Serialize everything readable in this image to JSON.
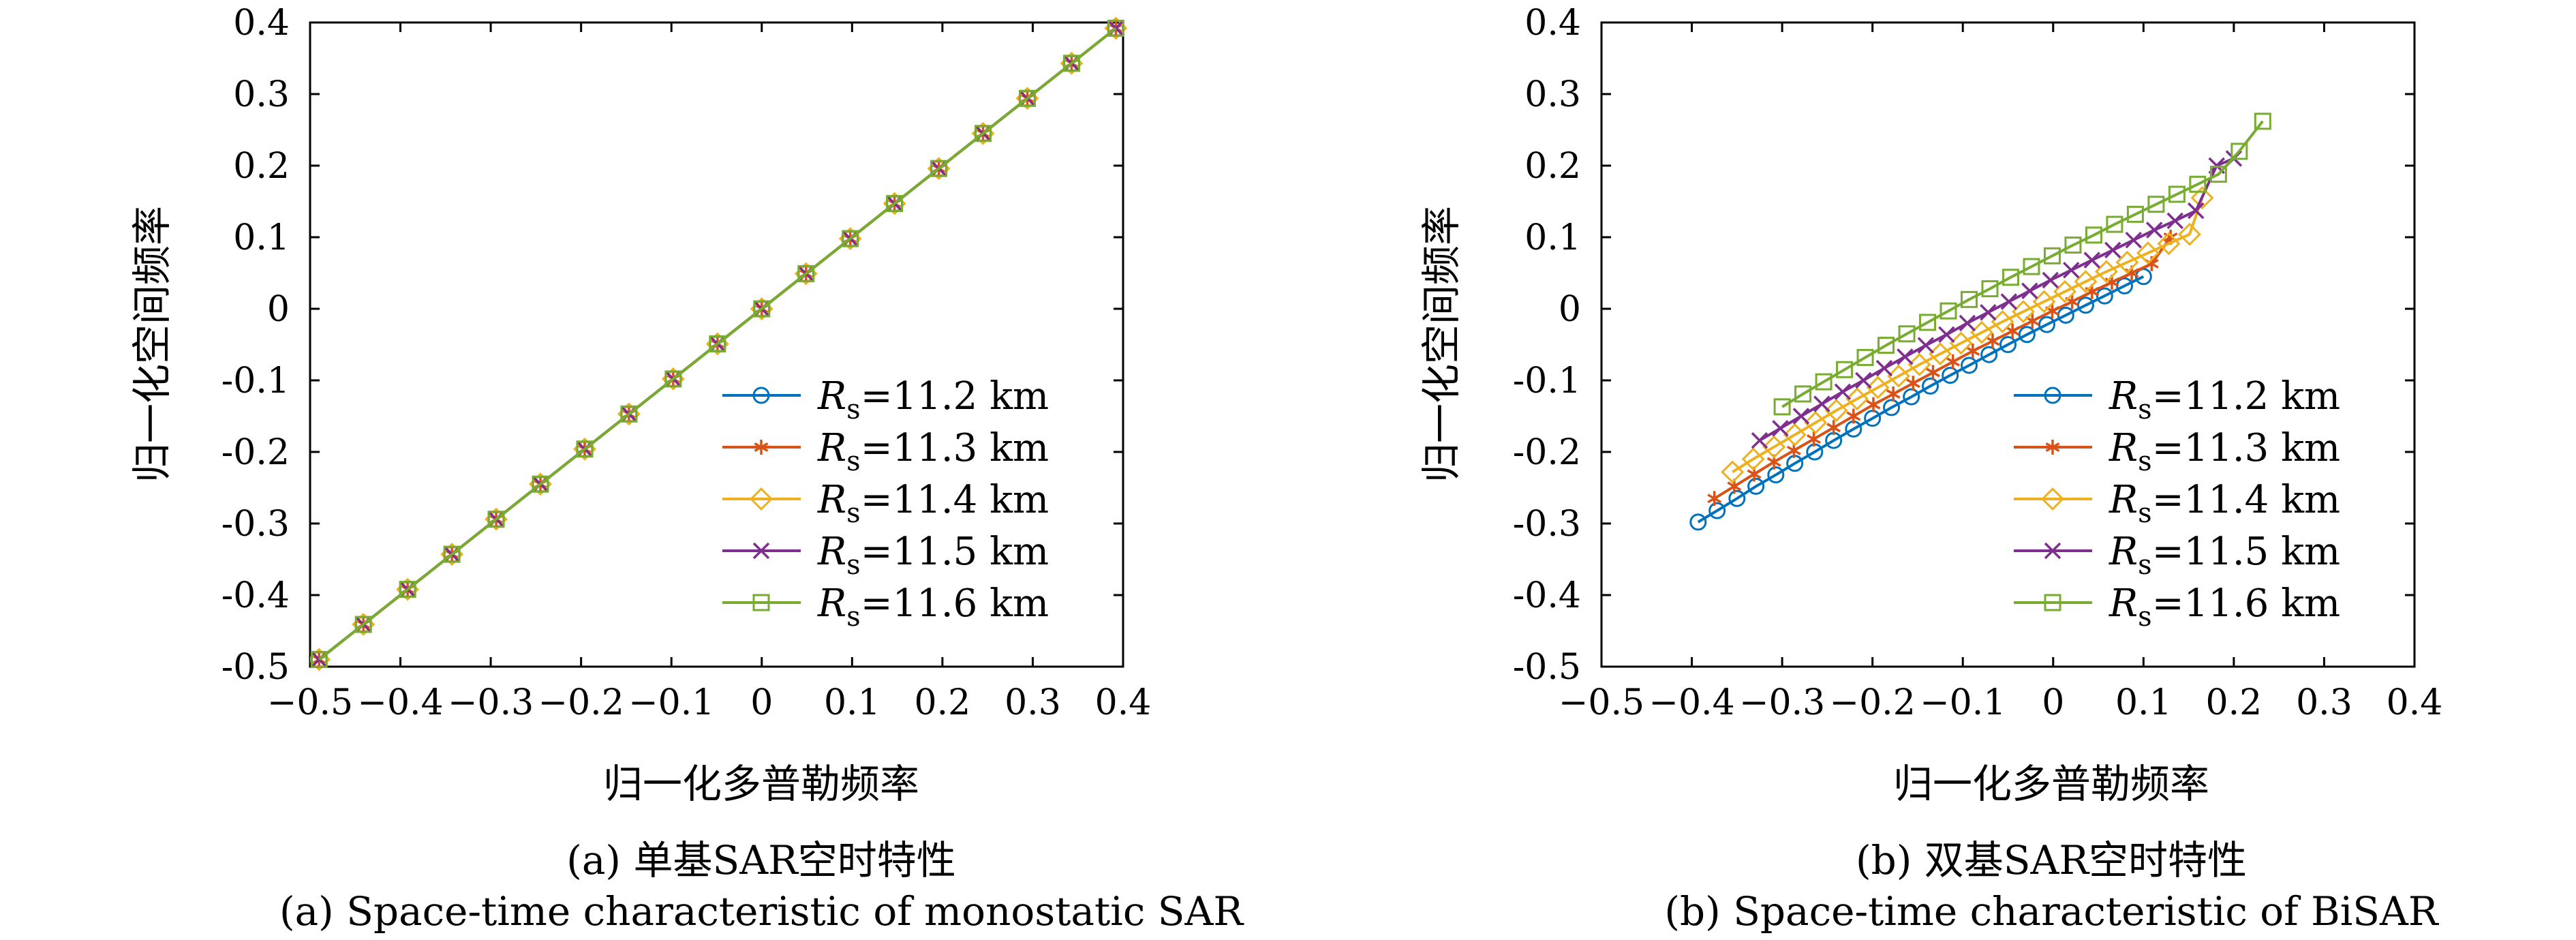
{
  "chart_data": [
    {
      "type": "line",
      "ylabel": "归一化空间频率",
      "xlabel": "归一化多普勒频率",
      "caption_cn": "(a) 单基SAR空时特性",
      "caption_en": "(a) Space-time characteristic of monostatic SAR",
      "xlim": [
        -0.5,
        0.4
      ],
      "ylim": [
        -0.5,
        0.4
      ],
      "xticks": [
        "−0.5",
        "−0.4",
        "−0.3",
        "−0.2",
        "−0.1",
        "0",
        "0.1",
        "0.2",
        "0.3",
        "0.4"
      ],
      "yticks": [
        "0.4",
        "0.3",
        "0.2",
        "0.1",
        "0",
        "-0.1",
        "-0.2",
        "-0.3",
        "-0.4",
        "-0.5"
      ],
      "legend_position": "lower-right",
      "series": [
        {
          "name": "R_s=11.2 km",
          "label_main": "R",
          "label_sub": "s",
          "label_tail": "=11.2 km",
          "color": "#0072BD",
          "marker": "circle",
          "x": [
            -0.49,
            -0.441,
            -0.392,
            -0.343,
            -0.294,
            -0.245,
            -0.196,
            -0.147,
            -0.098,
            -0.049,
            0.0,
            0.049,
            0.098,
            0.147,
            0.196,
            0.245,
            0.294,
            0.343,
            0.392
          ],
          "y": [
            -0.49,
            -0.441,
            -0.392,
            -0.343,
            -0.294,
            -0.245,
            -0.196,
            -0.147,
            -0.098,
            -0.049,
            0.0,
            0.049,
            0.098,
            0.147,
            0.196,
            0.245,
            0.294,
            0.343,
            0.392
          ]
        },
        {
          "name": "R_s=11.3 km",
          "label_main": "R",
          "label_sub": "s",
          "label_tail": "=11.3 km",
          "color": "#D95319",
          "marker": "star",
          "x": [
            -0.49,
            -0.441,
            -0.392,
            -0.343,
            -0.294,
            -0.245,
            -0.196,
            -0.147,
            -0.098,
            -0.049,
            0.0,
            0.049,
            0.098,
            0.147,
            0.196,
            0.245,
            0.294,
            0.343,
            0.392
          ],
          "y": [
            -0.49,
            -0.441,
            -0.392,
            -0.343,
            -0.294,
            -0.245,
            -0.196,
            -0.147,
            -0.098,
            -0.049,
            0.0,
            0.049,
            0.098,
            0.147,
            0.196,
            0.245,
            0.294,
            0.343,
            0.392
          ]
        },
        {
          "name": "R_s=11.4 km",
          "label_main": "R",
          "label_sub": "s",
          "label_tail": "=11.4 km",
          "color": "#EDB120",
          "marker": "diamond",
          "x": [
            -0.49,
            -0.441,
            -0.392,
            -0.343,
            -0.294,
            -0.245,
            -0.196,
            -0.147,
            -0.098,
            -0.049,
            0.0,
            0.049,
            0.098,
            0.147,
            0.196,
            0.245,
            0.294,
            0.343,
            0.392
          ],
          "y": [
            -0.49,
            -0.441,
            -0.392,
            -0.343,
            -0.294,
            -0.245,
            -0.196,
            -0.147,
            -0.098,
            -0.049,
            0.0,
            0.049,
            0.098,
            0.147,
            0.196,
            0.245,
            0.294,
            0.343,
            0.392
          ]
        },
        {
          "name": "R_s=11.5 km",
          "label_main": "R",
          "label_sub": "s",
          "label_tail": "=11.5 km",
          "color": "#7E2F8E",
          "marker": "x",
          "x": [
            -0.49,
            -0.441,
            -0.392,
            -0.343,
            -0.294,
            -0.245,
            -0.196,
            -0.147,
            -0.098,
            -0.049,
            0.0,
            0.049,
            0.098,
            0.147,
            0.196,
            0.245,
            0.294,
            0.343,
            0.392
          ],
          "y": [
            -0.49,
            -0.441,
            -0.392,
            -0.343,
            -0.294,
            -0.245,
            -0.196,
            -0.147,
            -0.098,
            -0.049,
            0.0,
            0.049,
            0.098,
            0.147,
            0.196,
            0.245,
            0.294,
            0.343,
            0.392
          ]
        },
        {
          "name": "R_s=11.6 km",
          "label_main": "R",
          "label_sub": "s",
          "label_tail": "=11.6 km",
          "color": "#77AC30",
          "marker": "square",
          "x": [
            -0.49,
            -0.441,
            -0.392,
            -0.343,
            -0.294,
            -0.245,
            -0.196,
            -0.147,
            -0.098,
            -0.049,
            0.0,
            0.049,
            0.098,
            0.147,
            0.196,
            0.245,
            0.294,
            0.343,
            0.392
          ],
          "y": [
            -0.49,
            -0.441,
            -0.392,
            -0.343,
            -0.294,
            -0.245,
            -0.196,
            -0.147,
            -0.098,
            -0.049,
            0.0,
            0.049,
            0.098,
            0.147,
            0.196,
            0.245,
            0.294,
            0.343,
            0.392
          ]
        }
      ]
    },
    {
      "type": "line",
      "ylabel": "归一化空间频率",
      "xlabel": "归一化多普勒频率",
      "caption_cn": "(b) 双基SAR空时特性",
      "caption_en": "(b) Space-time characteristic of BiSAR",
      "xlim": [
        -0.5,
        0.4
      ],
      "ylim": [
        -0.5,
        0.4
      ],
      "xticks": [
        "−0.5",
        "−0.4",
        "−0.3",
        "−0.2",
        "−0.1",
        "0",
        "0.1",
        "0.2",
        "0.3",
        "0.4"
      ],
      "yticks": [
        "0.4",
        "0.3",
        "0.2",
        "0.1",
        "0",
        "-0.1",
        "-0.2",
        "-0.3",
        "-0.4",
        "-0.5"
      ],
      "legend_position": "lower-right",
      "series": [
        {
          "name": "R_s=11.2 km",
          "label_main": "R",
          "label_sub": "s",
          "label_tail": "=11.2 km",
          "color": "#0072BD",
          "marker": "circle",
          "x": [
            -0.393,
            -0.372,
            -0.35,
            -0.329,
            -0.307,
            -0.286,
            -0.264,
            -0.243,
            -0.221,
            -0.2,
            -0.179,
            -0.157,
            -0.136,
            -0.114,
            -0.093,
            -0.071,
            -0.05,
            -0.029,
            -0.007,
            0.014,
            0.036,
            0.057,
            0.079,
            0.1
          ],
          "y": [
            -0.298,
            -0.282,
            -0.265,
            -0.248,
            -0.232,
            -0.216,
            -0.2,
            -0.184,
            -0.168,
            -0.153,
            -0.138,
            -0.123,
            -0.108,
            -0.093,
            -0.079,
            -0.064,
            -0.05,
            -0.036,
            -0.022,
            -0.009,
            0.005,
            0.018,
            0.032,
            0.045
          ]
        },
        {
          "name": "R_s=11.3 km",
          "label_main": "R",
          "label_sub": "s",
          "label_tail": "=11.3 km",
          "color": "#D95319",
          "marker": "star",
          "x": [
            -0.375,
            -0.353,
            -0.331,
            -0.309,
            -0.287,
            -0.265,
            -0.243,
            -0.221,
            -0.199,
            -0.177,
            -0.155,
            -0.133,
            -0.111,
            -0.089,
            -0.067,
            -0.045,
            -0.023,
            -0.001,
            0.021,
            0.043,
            0.065,
            0.087,
            0.109,
            0.13
          ],
          "y": [
            -0.265,
            -0.248,
            -0.231,
            -0.214,
            -0.198,
            -0.182,
            -0.166,
            -0.15,
            -0.134,
            -0.119,
            -0.104,
            -0.089,
            -0.074,
            -0.059,
            -0.045,
            -0.031,
            -0.017,
            -0.003,
            0.01,
            0.024,
            0.037,
            0.05,
            0.063,
            0.1
          ]
        },
        {
          "name": "R_s=11.4 km",
          "label_main": "R",
          "label_sub": "s",
          "label_tail": "=11.4 km",
          "color": "#EDB120",
          "marker": "diamond",
          "x": [
            -0.355,
            -0.332,
            -0.309,
            -0.286,
            -0.263,
            -0.24,
            -0.217,
            -0.194,
            -0.171,
            -0.148,
            -0.125,
            -0.102,
            -0.079,
            -0.056,
            -0.033,
            -0.01,
            0.013,
            0.036,
            0.059,
            0.082,
            0.105,
            0.128,
            0.151,
            0.165
          ],
          "y": [
            -0.228,
            -0.21,
            -0.193,
            -0.176,
            -0.159,
            -0.142,
            -0.126,
            -0.11,
            -0.094,
            -0.078,
            -0.063,
            -0.048,
            -0.033,
            -0.018,
            -0.004,
            0.01,
            0.024,
            0.038,
            0.052,
            0.065,
            0.078,
            0.091,
            0.104,
            0.155
          ]
        },
        {
          "name": "R_s=11.5 km",
          "label_main": "R",
          "label_sub": "s",
          "label_tail": "=11.5 km",
          "color": "#7E2F8E",
          "marker": "x",
          "x": [
            -0.325,
            -0.302,
            -0.279,
            -0.256,
            -0.233,
            -0.21,
            -0.187,
            -0.164,
            -0.141,
            -0.118,
            -0.095,
            -0.072,
            -0.049,
            -0.026,
            -0.003,
            0.02,
            0.043,
            0.066,
            0.089,
            0.112,
            0.135,
            0.158,
            0.181,
            0.2
          ],
          "y": [
            -0.184,
            -0.167,
            -0.15,
            -0.133,
            -0.116,
            -0.1,
            -0.083,
            -0.067,
            -0.051,
            -0.036,
            -0.02,
            -0.005,
            0.01,
            0.025,
            0.04,
            0.054,
            0.068,
            0.082,
            0.096,
            0.11,
            0.123,
            0.137,
            0.2,
            0.21
          ]
        },
        {
          "name": "R_s=11.6 km",
          "label_main": "R",
          "label_sub": "s",
          "label_tail": "=11.6 km",
          "color": "#77AC30",
          "marker": "square",
          "x": [
            -0.3,
            -0.277,
            -0.254,
            -0.231,
            -0.208,
            -0.185,
            -0.162,
            -0.139,
            -0.116,
            -0.093,
            -0.07,
            -0.047,
            -0.024,
            -0.001,
            0.022,
            0.045,
            0.068,
            0.091,
            0.114,
            0.137,
            0.16,
            0.183,
            0.206,
            0.232
          ],
          "y": [
            -0.137,
            -0.119,
            -0.102,
            -0.085,
            -0.068,
            -0.051,
            -0.035,
            -0.019,
            -0.003,
            0.013,
            0.028,
            0.044,
            0.059,
            0.074,
            0.089,
            0.103,
            0.118,
            0.132,
            0.146,
            0.16,
            0.174,
            0.188,
            0.22,
            0.262
          ]
        }
      ]
    }
  ]
}
